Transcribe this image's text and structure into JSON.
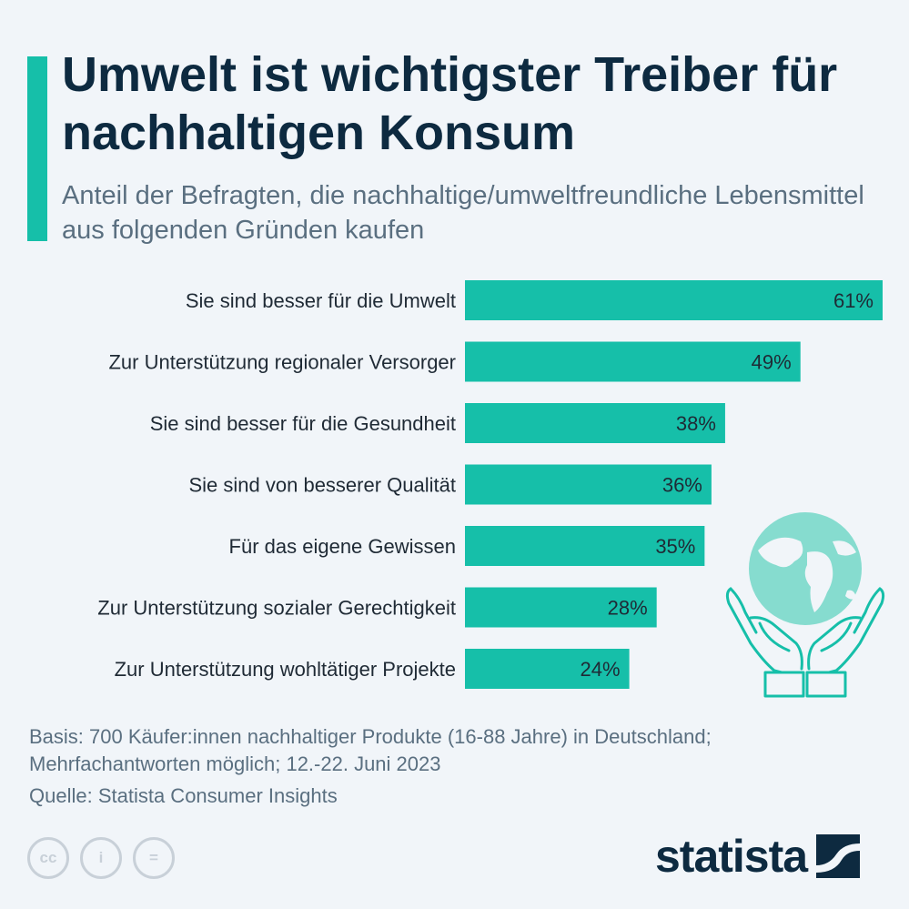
{
  "header": {
    "title": "Umwelt ist wichtigster Treiber für nachhaltigen Konsum",
    "subtitle": "Anteil der Befragten, die nachhaltige/umweltfreundliche Lebensmittel aus folgenden Gründen kaufen",
    "accent_color": "#16bfa9"
  },
  "chart_data": {
    "type": "bar",
    "orientation": "horizontal",
    "categories": [
      "Sie sind besser für die Umwelt",
      "Zur Unterstützung regionaler Versorger",
      "Sie sind besser für die Gesundheit",
      "Sie sind von besserer Qualität",
      "Für das eigene Gewissen",
      "Zur Unterstützung sozialer Gerechtigkeit",
      "Zur Unterstützung wohltätiger Projekte"
    ],
    "values": [
      61,
      49,
      38,
      36,
      35,
      28,
      24
    ],
    "value_labels": [
      "61%",
      "49%",
      "38%",
      "36%",
      "35%",
      "28%",
      "24%"
    ],
    "unit": "%",
    "bar_color": "#16bfa9",
    "grid": false
  },
  "footer": {
    "basis_line1": "Basis: 700 Käufer:innen nachhaltiger Produkte (16-88 Jahre) in Deutschland;",
    "basis_line2": "Mehrfachantworten möglich; 12.-22. Juni 2023",
    "source": "Quelle: Statista Consumer Insights",
    "license_icons": [
      "cc-icon",
      "person-icon",
      "equals-icon"
    ],
    "license_symbols": [
      "cc",
      "i",
      "="
    ],
    "brand": "statista"
  }
}
